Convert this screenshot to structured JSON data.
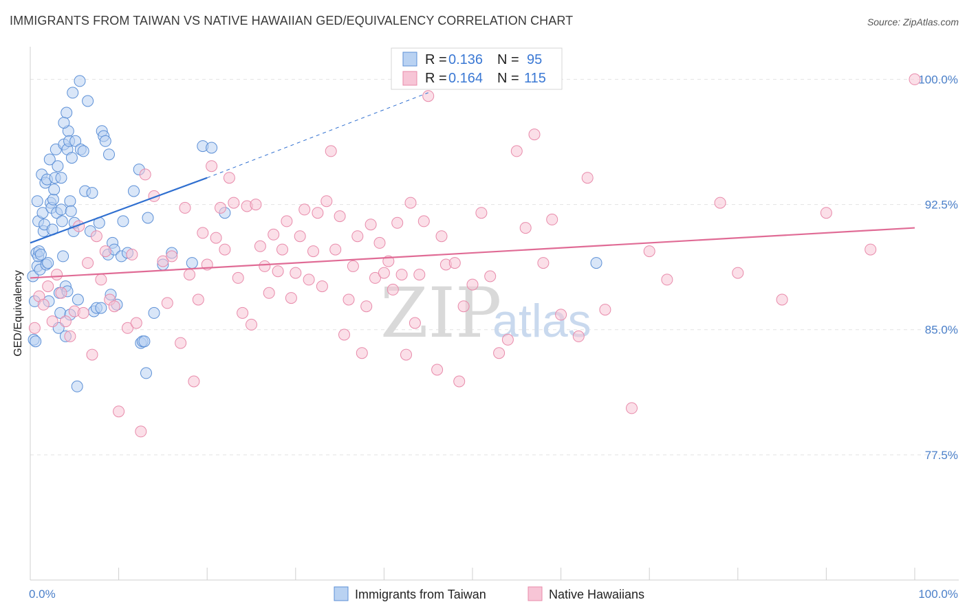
{
  "title": "IMMIGRANTS FROM TAIWAN VS NATIVE HAWAIIAN GED/EQUIVALENCY CORRELATION CHART",
  "source": "Source: ZipAtlas.com",
  "watermark": {
    "zip": "ZIP",
    "atlas": "atlas"
  },
  "colors": {
    "blue_fill": "#b9d2f2",
    "blue_stroke": "#5b8fd6",
    "blue_line": "#2f6fd0",
    "pink_fill": "#f7c5d6",
    "pink_stroke": "#e88aaa",
    "pink_line": "#e06b95",
    "tick_text": "#4a7fc9",
    "grid": "#e3e3e3"
  },
  "chart_data": {
    "type": "scatter",
    "title": "IMMIGRANTS FROM TAIWAN VS NATIVE HAWAIIAN GED/EQUIVALENCY CORRELATION CHART",
    "xlabel": "",
    "ylabel": "GED/Equivalency",
    "xlim": [
      0,
      100
    ],
    "ylim": [
      70,
      101.5
    ],
    "x_tick_labels": [
      "0.0%",
      "100.0%"
    ],
    "y_ticks": [
      {
        "value": 100.0,
        "label": "100.0%"
      },
      {
        "value": 92.5,
        "label": "92.5%"
      },
      {
        "value": 85.0,
        "label": "85.0%"
      },
      {
        "value": 77.5,
        "label": "77.5%"
      }
    ],
    "legend": {
      "position": "top-center",
      "entries": [
        {
          "r_label": "R =",
          "r_value": "0.136",
          "n_label": "N =",
          "n_value": "95"
        },
        {
          "r_label": "R =",
          "r_value": "0.164",
          "n_label": "N =",
          "n_value": "115"
        }
      ]
    },
    "series": [
      {
        "name": "Immigrants from Taiwan",
        "color": "blue",
        "trend": {
          "x0": 0,
          "y0": 90.2,
          "x1": 20,
          "y1": 94.1,
          "dash_to_x": 45,
          "dash_to_y": 99.2
        },
        "points": [
          [
            0.3,
            88.2
          ],
          [
            0.4,
            84.4
          ],
          [
            0.5,
            86.7
          ],
          [
            0.6,
            84.3
          ],
          [
            0.7,
            89.6
          ],
          [
            0.8,
            88.8
          ],
          [
            0.9,
            89.4
          ],
          [
            0.8,
            92.7
          ],
          [
            0.9,
            91.5
          ],
          [
            1.0,
            89.7
          ],
          [
            1.1,
            88.6
          ],
          [
            1.2,
            89.5
          ],
          [
            1.3,
            94.3
          ],
          [
            1.4,
            92.0
          ],
          [
            1.5,
            90.9
          ],
          [
            1.6,
            91.3
          ],
          [
            1.7,
            93.8
          ],
          [
            1.8,
            88.9
          ],
          [
            1.9,
            94.0
          ],
          [
            2.0,
            89.0
          ],
          [
            2.1,
            86.7
          ],
          [
            2.2,
            95.2
          ],
          [
            2.3,
            92.6
          ],
          [
            2.4,
            92.3
          ],
          [
            2.5,
            91.0
          ],
          [
            2.6,
            92.8
          ],
          [
            2.7,
            93.4
          ],
          [
            2.8,
            94.1
          ],
          [
            2.9,
            95.8
          ],
          [
            3.0,
            92.0
          ],
          [
            3.1,
            94.8
          ],
          [
            3.2,
            85.1
          ],
          [
            3.3,
            87.2
          ],
          [
            3.4,
            86.0
          ],
          [
            3.5,
            92.2
          ],
          [
            3.6,
            91.5
          ],
          [
            3.8,
            96.1
          ],
          [
            4.0,
            84.6
          ],
          [
            4.1,
            98.0
          ],
          [
            4.2,
            95.8
          ],
          [
            4.3,
            96.9
          ],
          [
            4.4,
            96.3
          ],
          [
            4.5,
            92.7
          ],
          [
            4.6,
            92.1
          ],
          [
            3.7,
            89.4
          ],
          [
            3.8,
            97.4
          ],
          [
            4.0,
            87.6
          ],
          [
            3.5,
            94.1
          ],
          [
            4.2,
            87.3
          ],
          [
            4.5,
            85.9
          ],
          [
            4.7,
            95.3
          ],
          [
            4.8,
            99.2
          ],
          [
            4.9,
            90.9
          ],
          [
            5.0,
            91.4
          ],
          [
            5.1,
            96.3
          ],
          [
            5.3,
            81.6
          ],
          [
            5.4,
            86.8
          ],
          [
            5.6,
            99.9
          ],
          [
            5.7,
            95.8
          ],
          [
            6.0,
            95.7
          ],
          [
            6.2,
            93.3
          ],
          [
            6.5,
            98.7
          ],
          [
            6.8,
            90.9
          ],
          [
            7.0,
            93.2
          ],
          [
            7.2,
            86.1
          ],
          [
            7.5,
            86.3
          ],
          [
            7.8,
            91.4
          ],
          [
            8.0,
            86.3
          ],
          [
            8.1,
            96.9
          ],
          [
            8.3,
            96.6
          ],
          [
            8.5,
            96.3
          ],
          [
            8.8,
            89.5
          ],
          [
            8.9,
            95.5
          ],
          [
            9.1,
            87.1
          ],
          [
            9.3,
            90.2
          ],
          [
            9.5,
            89.8
          ],
          [
            9.8,
            86.5
          ],
          [
            10.3,
            89.4
          ],
          [
            10.5,
            91.5
          ],
          [
            11.0,
            89.6
          ],
          [
            11.7,
            93.3
          ],
          [
            12.3,
            94.6
          ],
          [
            12.5,
            84.2
          ],
          [
            12.7,
            84.3
          ],
          [
            12.9,
            84.3
          ],
          [
            13.1,
            82.4
          ],
          [
            13.3,
            91.7
          ],
          [
            14.0,
            86.0
          ],
          [
            15.0,
            88.9
          ],
          [
            16.0,
            89.6
          ],
          [
            18.3,
            89.0
          ],
          [
            19.5,
            96.0
          ],
          [
            20.5,
            95.9
          ],
          [
            22.0,
            92.0
          ],
          [
            64.0,
            89.0
          ]
        ]
      },
      {
        "name": "Native Hawaiians",
        "color": "pink",
        "trend": {
          "x0": 0,
          "y0": 88.1,
          "x1": 100,
          "y1": 91.1
        },
        "points": [
          [
            0.5,
            85.1
          ],
          [
            1.0,
            87.0
          ],
          [
            1.5,
            86.5
          ],
          [
            2.0,
            87.6
          ],
          [
            2.5,
            85.5
          ],
          [
            3.0,
            88.3
          ],
          [
            3.5,
            87.2
          ],
          [
            4.0,
            85.5
          ],
          [
            4.5,
            84.6
          ],
          [
            5.0,
            86.1
          ],
          [
            5.5,
            91.2
          ],
          [
            6.0,
            86.0
          ],
          [
            6.5,
            89.0
          ],
          [
            7.0,
            83.5
          ],
          [
            7.5,
            90.6
          ],
          [
            8.0,
            88.0
          ],
          [
            8.5,
            89.7
          ],
          [
            9.0,
            86.8
          ],
          [
            9.5,
            86.4
          ],
          [
            10.0,
            80.1
          ],
          [
            11.0,
            85.1
          ],
          [
            11.5,
            89.5
          ],
          [
            12.0,
            85.4
          ],
          [
            12.5,
            78.9
          ],
          [
            13.0,
            94.3
          ],
          [
            14.0,
            93.0
          ],
          [
            15.0,
            89.1
          ],
          [
            15.5,
            86.6
          ],
          [
            16.0,
            89.4
          ],
          [
            17.0,
            84.2
          ],
          [
            17.5,
            92.3
          ],
          [
            18.0,
            88.3
          ],
          [
            18.5,
            81.9
          ],
          [
            19.0,
            86.8
          ],
          [
            19.5,
            90.8
          ],
          [
            20.0,
            88.9
          ],
          [
            20.5,
            94.8
          ],
          [
            21.0,
            90.5
          ],
          [
            21.5,
            92.3
          ],
          [
            22.0,
            89.8
          ],
          [
            22.5,
            94.1
          ],
          [
            23.0,
            92.6
          ],
          [
            23.5,
            88.1
          ],
          [
            24.0,
            86.0
          ],
          [
            24.5,
            92.4
          ],
          [
            25.0,
            85.3
          ],
          [
            25.5,
            92.5
          ],
          [
            26.0,
            90.0
          ],
          [
            26.5,
            88.8
          ],
          [
            27.0,
            87.2
          ],
          [
            27.5,
            90.7
          ],
          [
            28.0,
            88.5
          ],
          [
            28.5,
            89.8
          ],
          [
            29.0,
            91.5
          ],
          [
            29.5,
            86.9
          ],
          [
            30.0,
            88.4
          ],
          [
            30.5,
            90.6
          ],
          [
            31.0,
            92.2
          ],
          [
            31.5,
            88.0
          ],
          [
            32.0,
            89.7
          ],
          [
            32.5,
            92.0
          ],
          [
            33.0,
            87.6
          ],
          [
            33.5,
            92.7
          ],
          [
            34.0,
            95.7
          ],
          [
            34.5,
            89.8
          ],
          [
            35.0,
            91.8
          ],
          [
            35.5,
            84.7
          ],
          [
            36.0,
            86.8
          ],
          [
            36.5,
            88.8
          ],
          [
            37.0,
            90.6
          ],
          [
            37.5,
            83.6
          ],
          [
            38.0,
            86.4
          ],
          [
            38.5,
            91.3
          ],
          [
            39.0,
            88.1
          ],
          [
            39.5,
            90.2
          ],
          [
            40.0,
            88.4
          ],
          [
            40.5,
            89.1
          ],
          [
            41.0,
            87.4
          ],
          [
            41.5,
            91.4
          ],
          [
            42.0,
            88.3
          ],
          [
            42.5,
            83.5
          ],
          [
            43.0,
            92.6
          ],
          [
            43.5,
            85.4
          ],
          [
            44.0,
            88.3
          ],
          [
            44.5,
            91.5
          ],
          [
            45.0,
            99.0
          ],
          [
            46.0,
            82.6
          ],
          [
            46.5,
            90.6
          ],
          [
            47.0,
            88.9
          ],
          [
            48.0,
            89.0
          ],
          [
            48.5,
            81.9
          ],
          [
            49.0,
            86.4
          ],
          [
            50.0,
            87.7
          ],
          [
            51.0,
            92.0
          ],
          [
            52.0,
            88.2
          ],
          [
            53.0,
            83.6
          ],
          [
            54.0,
            84.4
          ],
          [
            55.0,
            95.7
          ],
          [
            56.0,
            91.1
          ],
          [
            57.0,
            96.7
          ],
          [
            58.0,
            89.0
          ],
          [
            59.0,
            91.6
          ],
          [
            60.0,
            85.9
          ],
          [
            62.0,
            84.6
          ],
          [
            63.0,
            94.1
          ],
          [
            65.0,
            86.2
          ],
          [
            68.0,
            80.3
          ],
          [
            70.0,
            89.7
          ],
          [
            72.0,
            88.0
          ],
          [
            78.0,
            92.6
          ],
          [
            80.0,
            88.4
          ],
          [
            85.0,
            86.8
          ],
          [
            90.0,
            92.0
          ],
          [
            95.0,
            89.8
          ],
          [
            100.0,
            100.0
          ]
        ]
      }
    ]
  },
  "legend_bottom": {
    "items": [
      {
        "label": "Immigrants from Taiwan"
      },
      {
        "label": "Native Hawaiians"
      }
    ]
  }
}
